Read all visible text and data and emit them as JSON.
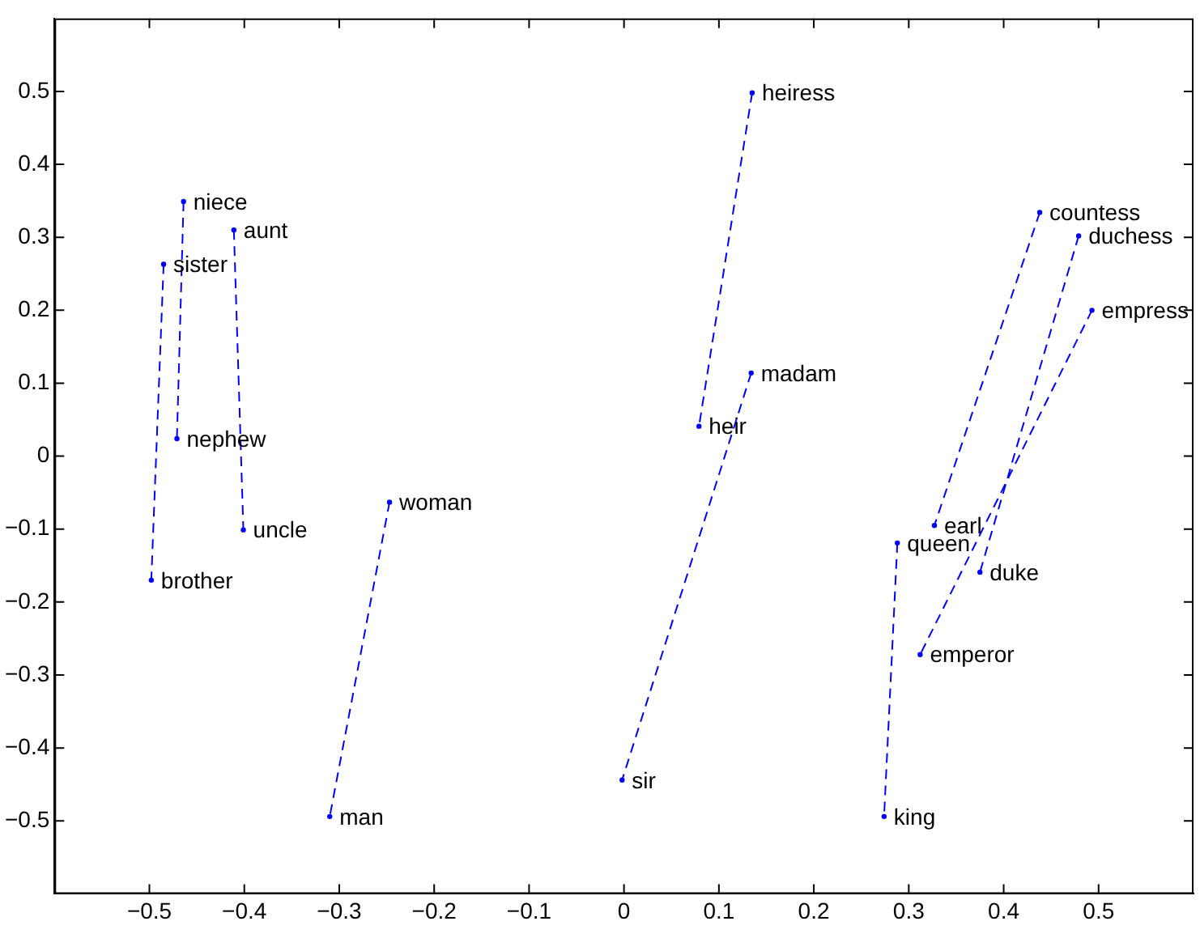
{
  "chart_data": {
    "type": "line",
    "line_style": "dashed",
    "marker": "circle",
    "grid": false,
    "legend": false,
    "xlim": [
      -0.6,
      0.6
    ],
    "xticks": [
      -0.5,
      -0.4,
      -0.3,
      -0.2,
      -0.1,
      0,
      0.1,
      0.2,
      0.3,
      0.4,
      0.5
    ],
    "ylim": [
      -0.6,
      0.6
    ],
    "yticks": [
      -0.5,
      -0.4,
      -0.3,
      -0.2,
      -0.1,
      0,
      0.1,
      0.2,
      0.3,
      0.4,
      0.5
    ],
    "series": [
      {
        "color": "#0000ff",
        "x": [
          -0.464,
          -0.471
        ],
        "values": [
          0.349,
          0.024
        ]
      },
      {
        "color": "#0000ff",
        "x": [
          -0.411,
          -0.401
        ],
        "values": [
          0.31,
          -0.101
        ]
      },
      {
        "color": "#0000ff",
        "x": [
          -0.485,
          -0.498
        ],
        "values": [
          0.263,
          -0.17
        ]
      },
      {
        "color": "#0000ff",
        "x": [
          -0.247,
          -0.31
        ],
        "values": [
          -0.063,
          -0.494
        ]
      },
      {
        "color": "#0000ff",
        "x": [
          0.135,
          0.079
        ],
        "values": [
          0.498,
          0.041
        ]
      },
      {
        "color": "#0000ff",
        "x": [
          0.134,
          -0.002
        ],
        "values": [
          0.114,
          -0.444
        ]
      },
      {
        "color": "#0000ff",
        "x": [
          0.438,
          0.327
        ],
        "values": [
          0.334,
          -0.095
        ]
      },
      {
        "color": "#0000ff",
        "x": [
          0.479,
          0.375
        ],
        "values": [
          0.302,
          -0.159
        ]
      },
      {
        "color": "#0000ff",
        "x": [
          0.493,
          0.312
        ],
        "values": [
          0.2,
          -0.272
        ]
      },
      {
        "color": "#0000ff",
        "x": [
          0.288,
          0.274
        ],
        "values": [
          -0.119,
          -0.494
        ]
      }
    ],
    "annotations": [
      {
        "text": "niece",
        "x": -0.464,
        "y": 0.349
      },
      {
        "text": "nephew",
        "x": -0.471,
        "y": 0.024
      },
      {
        "text": "aunt",
        "x": -0.411,
        "y": 0.31
      },
      {
        "text": "uncle",
        "x": -0.401,
        "y": -0.101
      },
      {
        "text": "sister",
        "x": -0.485,
        "y": 0.263
      },
      {
        "text": "brother",
        "x": -0.498,
        "y": -0.17
      },
      {
        "text": "woman",
        "x": -0.247,
        "y": -0.063
      },
      {
        "text": "man",
        "x": -0.31,
        "y": -0.494
      },
      {
        "text": "heiress",
        "x": 0.135,
        "y": 0.498
      },
      {
        "text": "heir",
        "x": 0.079,
        "y": 0.041
      },
      {
        "text": "madam",
        "x": 0.134,
        "y": 0.114
      },
      {
        "text": "sir",
        "x": -0.002,
        "y": -0.444
      },
      {
        "text": "countess",
        "x": 0.438,
        "y": 0.334
      },
      {
        "text": "earl",
        "x": 0.327,
        "y": -0.095
      },
      {
        "text": "duchess",
        "x": 0.479,
        "y": 0.302
      },
      {
        "text": "duke",
        "x": 0.375,
        "y": -0.159
      },
      {
        "text": "empress",
        "x": 0.493,
        "y": 0.2
      },
      {
        "text": "emperor",
        "x": 0.312,
        "y": -0.272
      },
      {
        "text": "queen",
        "x": 0.288,
        "y": -0.119
      },
      {
        "text": "king",
        "x": 0.274,
        "y": -0.494
      }
    ]
  }
}
